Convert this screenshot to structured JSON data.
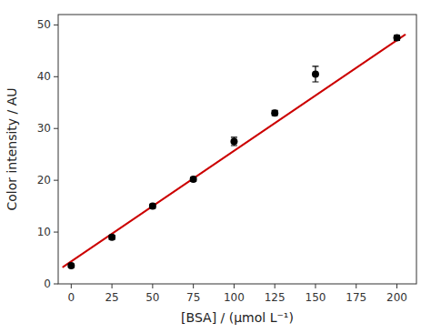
{
  "chart_data": {
    "type": "scatter",
    "xlabel": "[BSA] / (μmol L⁻¹)",
    "ylabel": "Color intensity / AU",
    "series": [
      {
        "type": "scatter",
        "marker": "circle",
        "color": "black",
        "x": [
          0,
          25,
          50,
          75,
          100,
          125,
          150,
          200
        ],
        "values": [
          3.5,
          9.0,
          15.0,
          20.2,
          27.5,
          33.0,
          40.5,
          47.5
        ],
        "yerr": [
          0.3,
          0.4,
          0.4,
          0.4,
          0.8,
          0.5,
          1.5,
          0.5
        ]
      },
      {
        "type": "line",
        "line_style": "solid",
        "color": "#cc0000",
        "x": [
          -5,
          205
        ],
        "values": [
          3.28,
          48.1
        ]
      }
    ],
    "xlim": [
      -8,
      212
    ],
    "ylim": [
      0,
      52
    ],
    "xticks": [
      0,
      25,
      50,
      75,
      100,
      125,
      150,
      175,
      200
    ],
    "yticks": [
      0,
      10,
      20,
      30,
      40,
      50
    ],
    "grid": false
  }
}
